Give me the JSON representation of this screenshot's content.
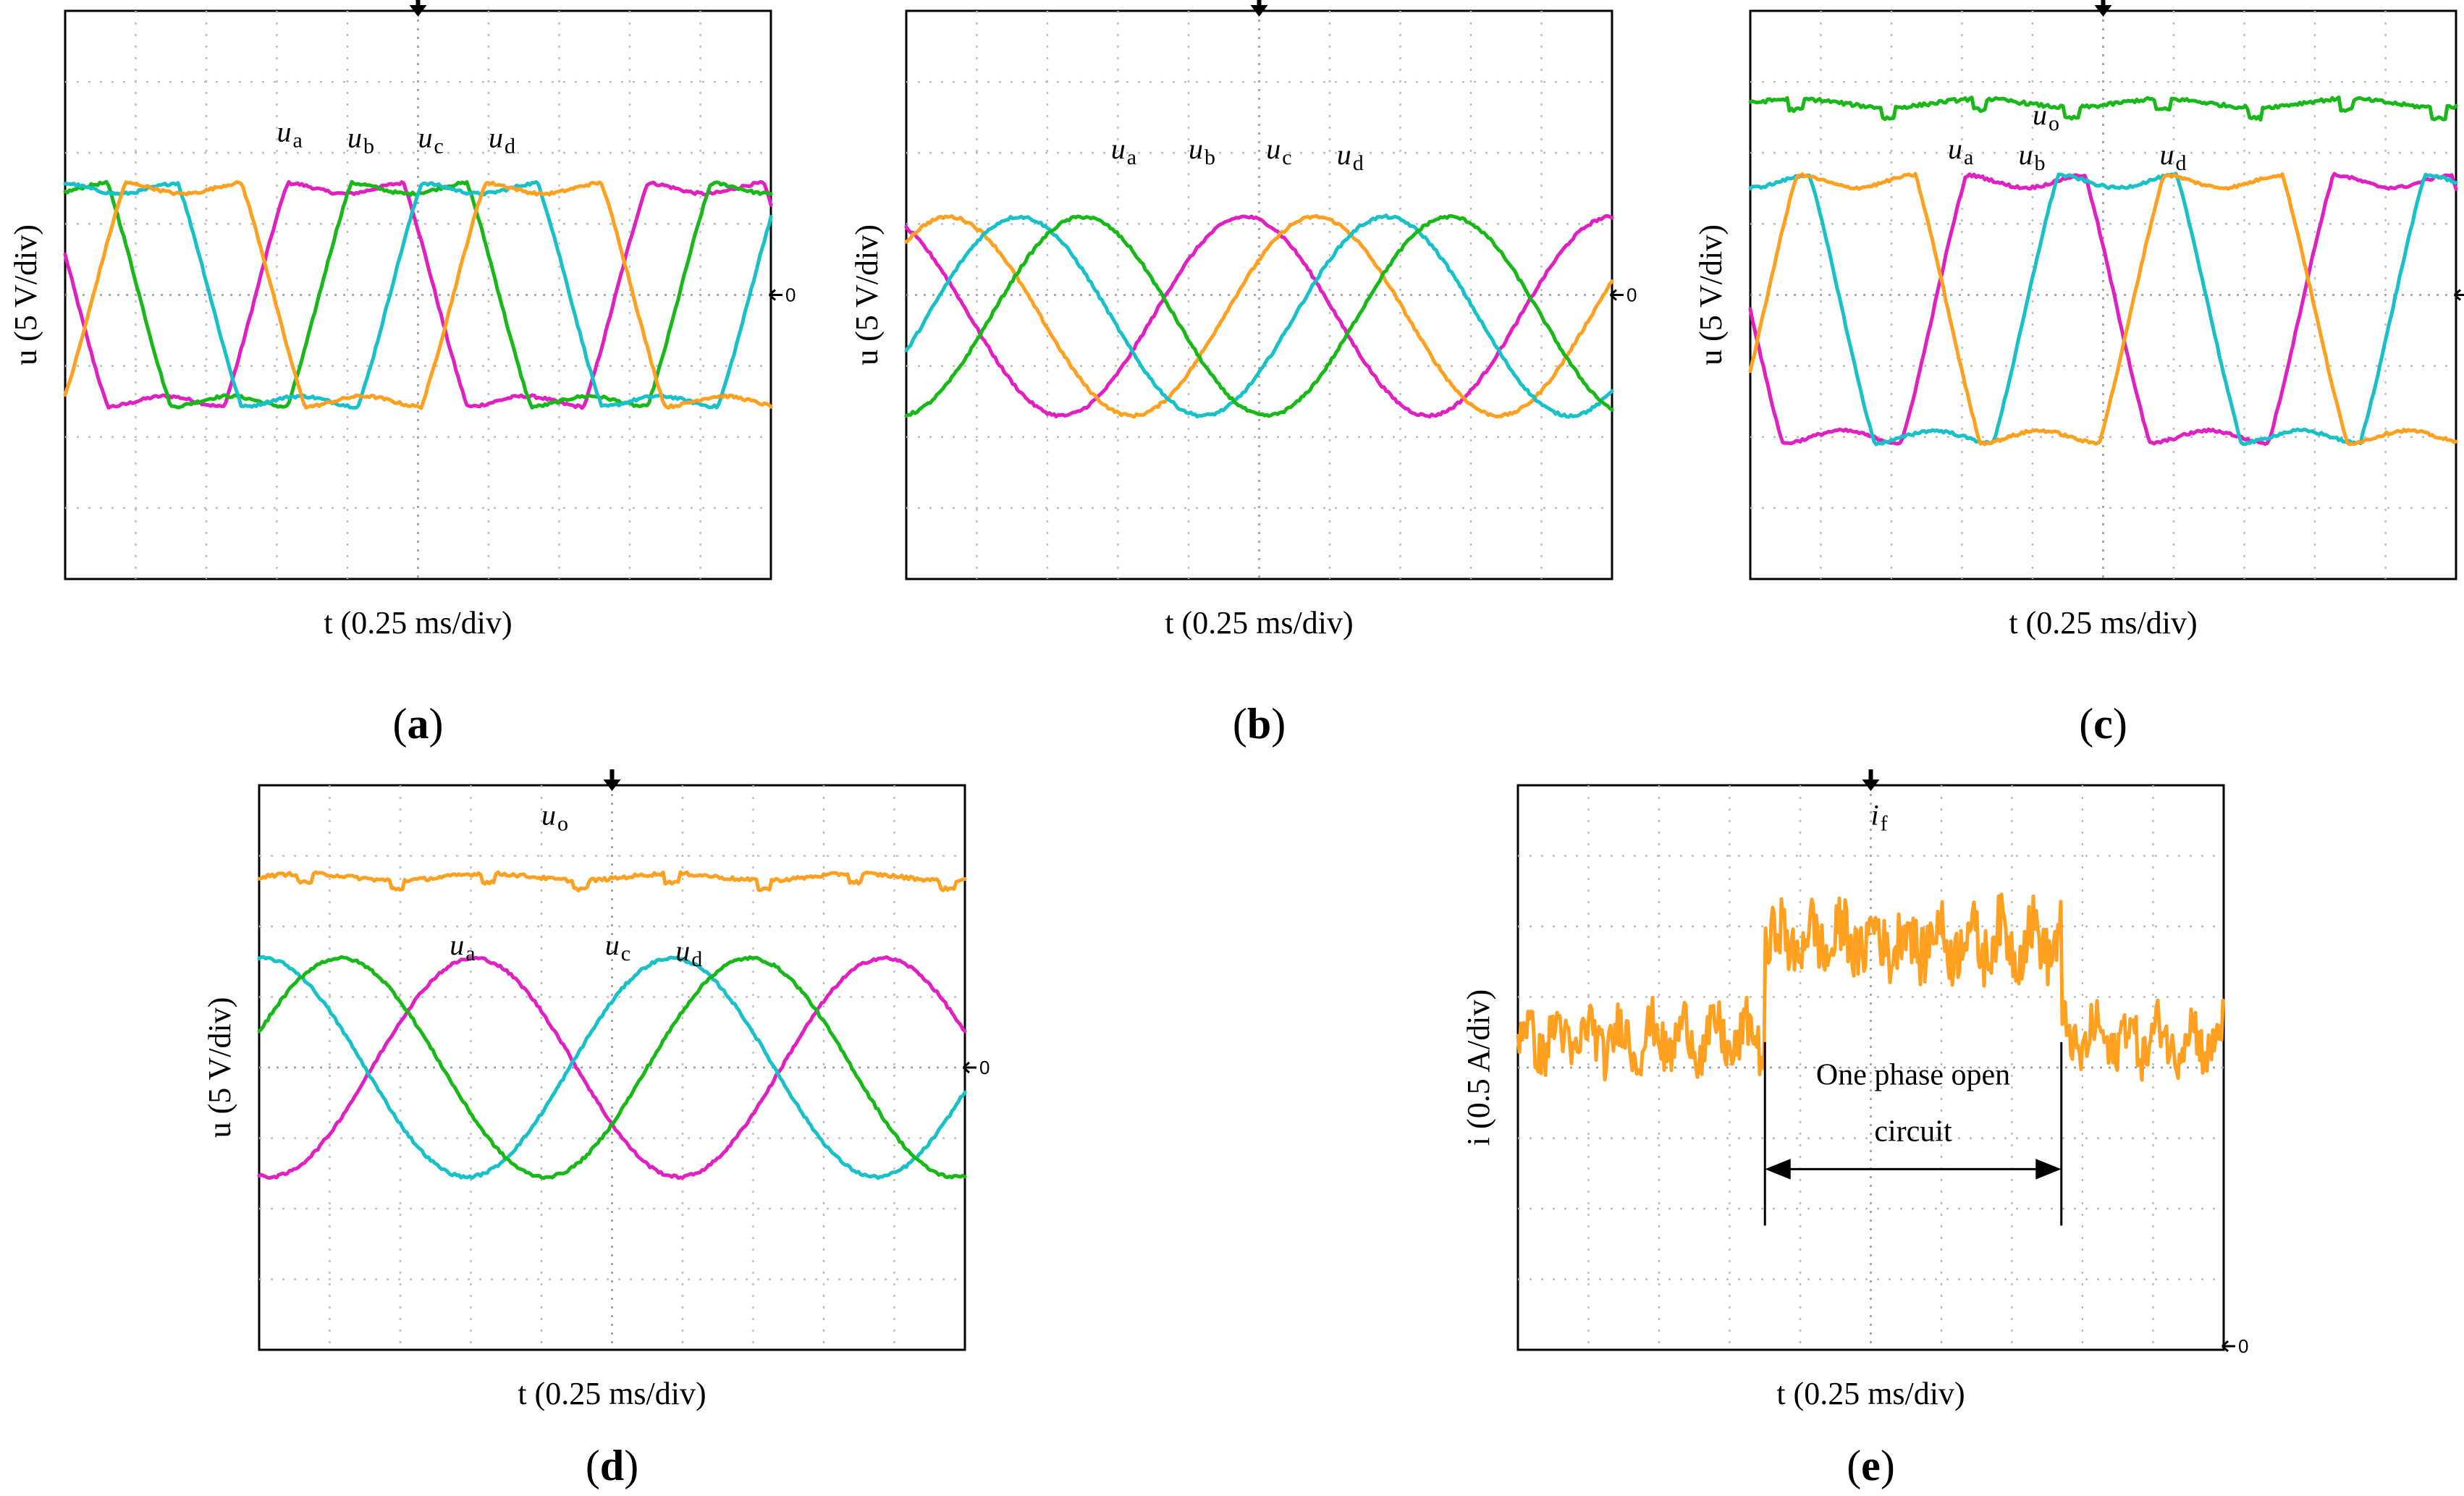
{
  "figure": {
    "zero_label": "0",
    "colors": {
      "magenta": "#e020c0",
      "green": "#18b818",
      "cyan": "#18c0c8",
      "orange": "#ffa020"
    }
  },
  "chart_data": [
    {
      "id": "a",
      "type": "line",
      "tag": "a",
      "ylabel": "u (5 V/div)",
      "xlabel": "t (0.25 ms/div)",
      "x_divisions": 10,
      "y_divisions": 8,
      "series": [
        {
          "name": "ua",
          "label_main": "u",
          "label_sub": "a",
          "color": "#e020c0",
          "shape": "square",
          "amplitude_div": 1.5,
          "offset_div": 0,
          "period_div": 5.1,
          "phase_div": 2.7
        },
        {
          "name": "ub",
          "label_main": "u",
          "label_sub": "b",
          "color": "#18b818",
          "shape": "square",
          "amplitude_div": 1.5,
          "offset_div": 0,
          "period_div": 5.1,
          "phase_div": 3.6
        },
        {
          "name": "uc",
          "label_main": "u",
          "label_sub": "c",
          "color": "#18c0c8",
          "shape": "square",
          "amplitude_div": 1.5,
          "offset_div": 0,
          "period_div": 5.1,
          "phase_div": 4.6
        },
        {
          "name": "ud",
          "label_main": "u",
          "label_sub": "d",
          "color": "#ffa020",
          "shape": "square",
          "amplitude_div": 1.5,
          "offset_div": 0,
          "period_div": 5.1,
          "phase_div": 0.4
        }
      ]
    },
    {
      "id": "b",
      "type": "line",
      "tag": "b",
      "ylabel": "u (5 V/div)",
      "xlabel": "t  (0.25 ms/div)",
      "x_divisions": 10,
      "y_divisions": 8,
      "series": [
        {
          "name": "ua",
          "label_main": "u",
          "label_sub": "a",
          "color": "#e020c0",
          "shape": "sine",
          "amplitude_div": 1.4,
          "offset_div": -0.3,
          "period_div": 5.2,
          "phase_div": 3.5
        },
        {
          "name": "ub",
          "label_main": "u",
          "label_sub": "b",
          "color": "#ffa020",
          "shape": "sine",
          "amplitude_div": 1.4,
          "offset_div": -0.3,
          "period_div": 5.2,
          "phase_div": 4.5
        },
        {
          "name": "uc",
          "label_main": "u",
          "label_sub": "c",
          "color": "#18c0c8",
          "shape": "sine",
          "amplitude_div": 1.4,
          "offset_div": -0.3,
          "period_div": 5.2,
          "phase_div": 0.3
        },
        {
          "name": "ud",
          "label_main": "u",
          "label_sub": "d",
          "color": "#18b818",
          "shape": "sine",
          "amplitude_div": 1.4,
          "offset_div": -0.3,
          "period_div": 5.2,
          "phase_div": 1.2
        }
      ]
    },
    {
      "id": "c",
      "type": "line",
      "tag": "c",
      "ylabel": "u (5 V/div)",
      "xlabel": "t (0.25 ms/div)",
      "x_divisions": 10,
      "y_divisions": 8,
      "series": [
        {
          "name": "uo",
          "label_main": "u",
          "label_sub": "o",
          "color": "#18b818",
          "shape": "dc",
          "amplitude_div": 0.1,
          "offset_div": 2.7,
          "period_div": 2.6,
          "phase_div": 0.0
        },
        {
          "name": "ua",
          "label_main": "u",
          "label_sub": "a",
          "color": "#e020c0",
          "shape": "square",
          "amplitude_div": 1.8,
          "offset_div": -0.2,
          "period_div": 5.2,
          "phase_div": 2.6
        },
        {
          "name": "ub",
          "label_main": "u",
          "label_sub": "b",
          "color": "#18c0c8",
          "shape": "square",
          "amplitude_div": 1.8,
          "offset_div": -0.2,
          "period_div": 5.2,
          "phase_div": 3.9
        },
        {
          "name": "ud",
          "label_main": "u",
          "label_sub": "d",
          "color": "#ffa020",
          "shape": "square",
          "amplitude_div": 1.8,
          "offset_div": -0.2,
          "period_div": 5.2,
          "phase_div": 0.2
        }
      ]
    },
    {
      "id": "d",
      "type": "line",
      "tag": "d",
      "ylabel": "u (5 V/div)",
      "xlabel": "t (0.25 ms/div)",
      "x_divisions": 10,
      "y_divisions": 8,
      "series": [
        {
          "name": "uo",
          "label_main": "u",
          "label_sub": "o",
          "color": "#ffa020",
          "shape": "dc",
          "amplitude_div": 0.08,
          "offset_div": 2.7,
          "period_div": 2.6,
          "phase_div": 0.0
        },
        {
          "name": "ua",
          "label_main": "u",
          "label_sub": "a",
          "color": "#e020c0",
          "shape": "sine",
          "amplitude_div": 1.55,
          "offset_div": 0.0,
          "period_div": 5.8,
          "phase_div": 1.6
        },
        {
          "name": "uc",
          "label_main": "u",
          "label_sub": "c",
          "color": "#18c0c8",
          "shape": "sine",
          "amplitude_div": 1.55,
          "offset_div": 0.0,
          "period_div": 5.8,
          "phase_div": 4.4
        },
        {
          "name": "ud",
          "label_main": "u",
          "label_sub": "d",
          "color": "#18b818",
          "shape": "sine",
          "amplitude_div": 1.55,
          "offset_div": 0.0,
          "period_div": 5.8,
          "phase_div": 5.5
        }
      ]
    },
    {
      "id": "e",
      "type": "line",
      "tag": "e",
      "ylabel": "i (0.5 A/div)",
      "xlabel": "t (0.25 ms/div)",
      "x_divisions": 10,
      "y_divisions": 8,
      "fault_start_div": 3.5,
      "fault_end_div": 7.7,
      "annotation_line1": "One phase open",
      "annotation_line2": "circuit",
      "series": [
        {
          "name": "if",
          "label_main": "i",
          "label_sub": "f",
          "color": "#ffa020",
          "shape": "noise",
          "normal_level_div": 4.4,
          "fault_level_div": 5.8,
          "noise_div": 0.35
        }
      ]
    }
  ]
}
